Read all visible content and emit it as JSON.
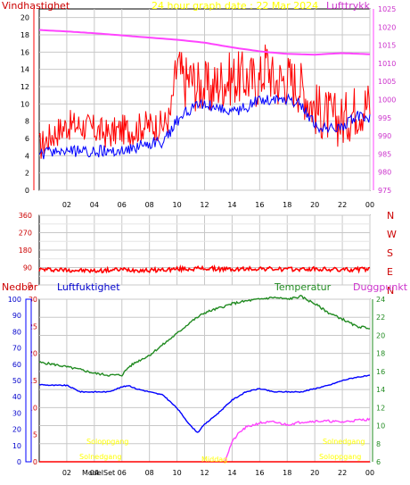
{
  "colors": {
    "wind_max": "#ff0000",
    "wind_avg": "#0000ff",
    "pressure": "#ff44ff",
    "direction": "#ff0000",
    "humidity": "#0000ff",
    "temperature": "#228b22",
    "dewpoint": "#ff44ff",
    "precip": "#ff0000",
    "sun": "#ffff00",
    "grid": "#c8c8c8",
    "frame": "#000000"
  },
  "chart_data": [
    {
      "type": "line",
      "title": "24 hour graph date : 22 Mar 2024",
      "ylabel": "Vindhastighet",
      "y2label": "Lufttrykk",
      "x_ticks": [
        "02",
        "04",
        "06",
        "08",
        "10",
        "12",
        "14",
        "16",
        "18",
        "20",
        "22",
        "00"
      ],
      "y_ticks": [
        "0",
        "2",
        "4",
        "6",
        "8",
        "10",
        "12",
        "14",
        "16",
        "18",
        "20"
      ],
      "y2_ticks": [
        "975",
        "980",
        "985",
        "990",
        "995",
        "1000",
        "1005",
        "1010",
        "1015",
        "1020",
        "1025"
      ],
      "ylim": [
        0,
        21
      ],
      "y2lim": [
        975,
        1025
      ],
      "grid": true,
      "series": [
        {
          "role": "wind_max",
          "x": [
            0,
            1,
            2,
            3,
            4,
            5,
            6,
            7,
            7.5,
            8,
            9,
            9.5,
            10,
            10.5,
            11,
            11.5,
            12,
            12.5,
            13,
            14,
            15,
            16,
            16.5,
            17,
            18,
            19,
            20,
            21,
            22,
            23,
            24
          ],
          "values": [
            5,
            6.5,
            7.5,
            7.5,
            7,
            6.5,
            7,
            7,
            7.5,
            7.5,
            7.5,
            8.5,
            14.5,
            12.5,
            13,
            12,
            12,
            11.5,
            12.5,
            13,
            13,
            12.5,
            15,
            12.5,
            13,
            12,
            9.5,
            8.5,
            8,
            9.5,
            10
          ]
        },
        {
          "role": "wind_avg",
          "x": [
            0,
            1,
            2,
            3,
            4,
            5,
            6,
            7,
            8,
            9,
            10,
            11,
            12,
            13,
            14,
            15,
            16,
            17,
            18,
            19,
            20,
            21,
            22,
            23,
            24
          ],
          "values": [
            4,
            4.5,
            4.5,
            4.5,
            4.5,
            4.5,
            4.5,
            5,
            5.5,
            5.5,
            8,
            9.5,
            10,
            9.5,
            9,
            9.5,
            10.5,
            10.5,
            10.5,
            10,
            7.5,
            7,
            7.5,
            8.5,
            8.5
          ]
        },
        {
          "role": "pressure",
          "x": [
            0,
            2,
            4,
            6,
            8,
            10,
            12,
            14,
            16,
            18,
            20,
            22,
            24
          ],
          "values": [
            1019.2,
            1018.8,
            1018.3,
            1017.7,
            1017.1,
            1016.5,
            1015.7,
            1014.4,
            1013.3,
            1012.6,
            1012.4,
            1012.8,
            1012.5
          ]
        }
      ]
    },
    {
      "type": "line",
      "ylabel": "",
      "y_ticks": [
        "0",
        "90",
        "180",
        "270",
        "360"
      ],
      "y_extra_ticks": [
        "45",
        "135",
        "225",
        "315"
      ],
      "y2_ticks": [
        "N",
        "W",
        "S",
        "E",
        "N"
      ],
      "ylim": [
        0,
        360
      ],
      "grid": true,
      "series": [
        {
          "role": "direction",
          "x": [
            0,
            2,
            4,
            6,
            8,
            10,
            12,
            14,
            16,
            18,
            20,
            22,
            24
          ],
          "values": [
            80,
            78,
            72,
            80,
            75,
            82,
            85,
            80,
            85,
            80,
            82,
            78,
            82
          ]
        }
      ]
    },
    {
      "type": "line",
      "ylabel": "Nedbør",
      "y2label": "Luftfuktighet",
      "y3label": "Temperatur",
      "y4label": "Duggpunkt",
      "y_ticks": [
        "0",
        "5",
        "10",
        "15",
        "20",
        "25",
        "30"
      ],
      "y2_ticks": [
        "0",
        "10",
        "20",
        "30",
        "40",
        "50",
        "60",
        "70",
        "80",
        "90",
        "100"
      ],
      "y3_ticks": [
        "6",
        "8",
        "10",
        "12",
        "14",
        "16",
        "18",
        "20",
        "22",
        "24"
      ],
      "x_ticks": [
        "02",
        "04",
        "06",
        "08",
        "10",
        "12",
        "14",
        "16",
        "18",
        "20",
        "22",
        "00"
      ],
      "ylim": [
        0,
        30
      ],
      "y2lim": [
        0,
        100
      ],
      "y3lim": [
        6,
        24
      ],
      "annotations": [
        "Soloppgang",
        "Solnedgang",
        "Middag",
        "Solnedgang",
        "Soloppgang",
        "ModelSet"
      ],
      "series": [
        {
          "role": "temperature",
          "x": [
            0,
            1,
            2,
            3,
            4,
            5,
            6,
            6.5,
            7,
            8,
            9,
            10,
            11,
            12,
            13,
            14,
            15,
            16,
            17,
            18,
            19,
            20,
            21,
            22,
            23,
            24
          ],
          "values": [
            17.0,
            16.8,
            16.5,
            16.2,
            15.8,
            15.6,
            15.6,
            16.5,
            17.0,
            17.8,
            19.0,
            20.2,
            21.5,
            22.5,
            23.0,
            23.5,
            23.8,
            24.0,
            24.2,
            24.0,
            24.3,
            23.5,
            22.5,
            21.8,
            21.0,
            20.8
          ]
        },
        {
          "role": "humidity",
          "x": [
            0,
            1,
            2,
            3,
            4,
            5,
            6,
            6.5,
            7,
            8,
            9,
            10,
            11,
            11.5,
            12,
            13,
            14,
            15,
            16,
            17,
            18,
            19,
            20,
            21,
            22,
            23,
            24
          ],
          "values": [
            47.5,
            47,
            47,
            43,
            43,
            43,
            46,
            47,
            45,
            43,
            41,
            33,
            22,
            18,
            23,
            30,
            38,
            43,
            45,
            43,
            43,
            43,
            45,
            47,
            50,
            52,
            53
          ]
        },
        {
          "role": "dewpoint",
          "x": [
            13.5,
            14,
            14.5,
            15,
            16,
            17,
            18,
            19,
            20,
            21,
            22,
            23,
            24
          ],
          "values": [
            6.2,
            8.2,
            9.2,
            9.8,
            10.3,
            10.4,
            10.1,
            10.4,
            10.5,
            10.5,
            10.4,
            10.6,
            10.7
          ]
        },
        {
          "role": "precipitation",
          "x": [
            0,
            24
          ],
          "values": [
            0,
            0
          ]
        }
      ]
    }
  ]
}
